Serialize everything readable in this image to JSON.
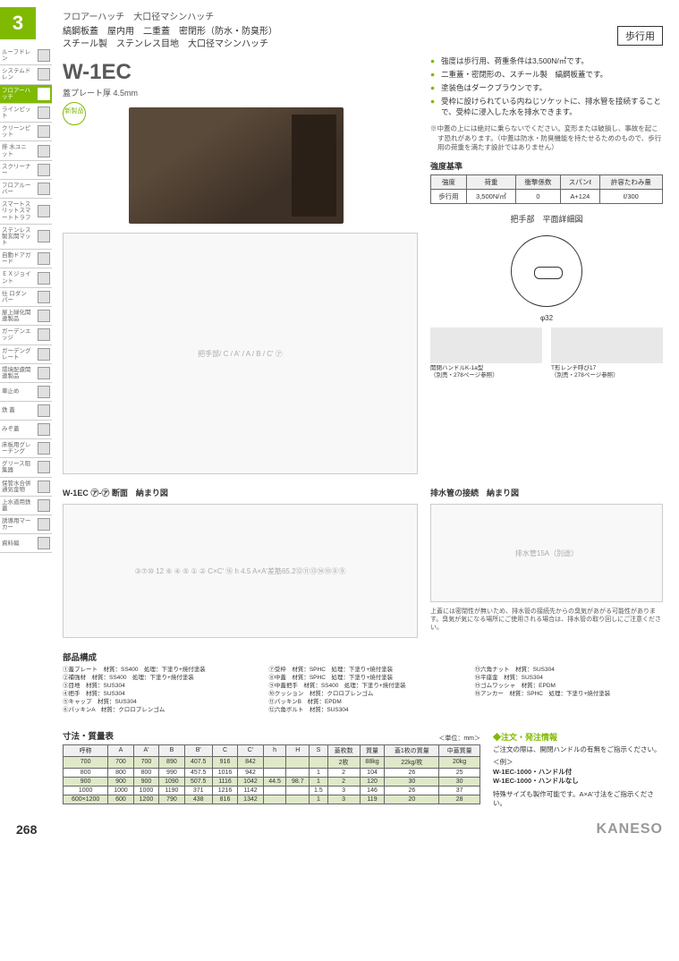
{
  "page_tab": "3",
  "sidebar": [
    {
      "label": "ルーフドレン"
    },
    {
      "label": "システムドレン"
    },
    {
      "label": "フロアーハッチ",
      "active": true
    },
    {
      "label": "ラインピット"
    },
    {
      "label": "クリーンピット"
    },
    {
      "label": "排 水ユニット"
    },
    {
      "label": "スクリーナー"
    },
    {
      "label": "フロアルーバー"
    },
    {
      "label": "スマートスリットスマートトラフ"
    },
    {
      "label": "ステンレス製玄関マット"
    },
    {
      "label": "自動ドアガード"
    },
    {
      "label": "ＥＸジョイント"
    },
    {
      "label": "仕 口ダンパー"
    },
    {
      "label": "屋上緑化関連製品"
    },
    {
      "label": "ガーデンエッジ"
    },
    {
      "label": "ガーデングレート"
    },
    {
      "label": "環境配慮関連製品"
    },
    {
      "label": "車止め"
    },
    {
      "label": "鉄 蓋"
    },
    {
      "label": "みぞ蓋"
    },
    {
      "label": "床板用グレーチング"
    },
    {
      "label": "グリース阻集器"
    },
    {
      "label": "保管水合併通気金物"
    },
    {
      "label": "上水道用鉄 蓋"
    },
    {
      "label": "誘導用マーカー"
    },
    {
      "label": "資料編"
    }
  ],
  "category": "フロアーハッチ　大口径マシンハッチ",
  "subtitle_line1": "縞鋼板蓋　屋内用　二重蓋　密閉形（防水・防臭形）",
  "subtitle_line2": "スチール製　ステンレス目地　大口径マシンハッチ",
  "walk_badge": "歩行用",
  "product_code": "W-1EC",
  "plate_thickness": "蓋プレート厚 4.5mm",
  "new_badge": "新製品",
  "bullets": [
    "強度は歩行用、荷重条件は3,500N/㎡です。",
    "二重蓋・密閉形の、スチール製　縞鋼板蓋です。",
    "塗装色はダークブラウンです。",
    "受枠に設けられている内ねじソケットに、排水管を接続することで、受枠に浸入した水を排水できます。"
  ],
  "caution_note": "※中蓋の上には絶対に乗らないでください。変形または破損し、事故を起こす恐れがあります。（中蓋は防水・防臭機能を持たせるためのもので、歩行用の荷重を満たす設計ではありません）",
  "strength_title": "強度基準",
  "strength_headers": [
    "強度",
    "荷重",
    "衝撃係数",
    "スパンℓ",
    "許容たわみ量"
  ],
  "strength_row": [
    "歩行用",
    "3,500N/㎡",
    "0",
    "A+124",
    "ℓ/300"
  ],
  "handle_title": "把手部　平面詳細図",
  "phi_label": "φ32",
  "tool1_name": "開閉ハンドルK-1a型",
  "tool1_note": "（別売・278ページ参照）",
  "tool2_name": "T形レンチ呼び17",
  "tool2_note": "（別売・278ページ参照）",
  "section_title": "W-1EC ㋐-㋐ 断面　納まり図",
  "drain_title": "排水管の接続　納まり図",
  "drain_pipe_label": "排水管15A（別途）",
  "drain_note": "上蓋には密閉性が無いため、排水管の接続先からの臭気があがる可能性があります。臭気が気になる場所にご使用される場合は、排水管の取り回しにご注意ください。",
  "parts_title": "部品構成",
  "parts": [
    [
      "①蓋プレート",
      "材質：SS400",
      "処理：下塗り+焼付塗装"
    ],
    [
      "②補強材",
      "材質：SS400",
      "処理：下塗り+焼付塗装"
    ],
    [
      "③目地",
      "材質：SUS304",
      ""
    ],
    [
      "④把手",
      "材質：SUS304",
      ""
    ],
    [
      "⑤キャップ",
      "材質：SUS304",
      ""
    ],
    [
      "⑥パッキンA",
      "材質：クロロプレンゴム",
      ""
    ],
    [
      "⑦受枠",
      "材質：SPHC",
      "処理：下塗り+焼付塗装"
    ],
    [
      "⑧中蓋",
      "材質：SPHC",
      "処理：下塗り+焼付塗装"
    ],
    [
      "⑨中蓋把手",
      "材質：SS400",
      "処理：下塗り+焼付塗装"
    ],
    [
      "⑩クッション",
      "材質：クロロプレンゴム",
      ""
    ],
    [
      "⑪パッキンB",
      "材質：EPDM",
      ""
    ],
    [
      "⑫六角ボルト",
      "材質：SUS304",
      ""
    ],
    [
      "⑬六角ナット",
      "材質：SUS304",
      ""
    ],
    [
      "⑭平座金",
      "材質：SUS304",
      ""
    ],
    [
      "⑮ゴムワッシャ",
      "材質：EPDM",
      ""
    ],
    [
      "⑯アンカー",
      "材質：SPHC",
      "処理：下塗り+焼付塗装"
    ]
  ],
  "dim_title": "寸法・質量表",
  "dim_unit": "＜単位：mm＞",
  "dim_headers": [
    "呼称",
    "A",
    "A'",
    "B",
    "B'",
    "C",
    "C'",
    "h",
    "H",
    "S",
    "蓋枚数",
    "質量",
    "蓋1枚の質量",
    "中蓋質量"
  ],
  "dim_rows": [
    {
      "cells": [
        "700",
        "700",
        "700",
        "890",
        "407.5",
        "916",
        "842",
        "",
        "",
        "",
        "2枚",
        "88kg",
        "22kg/枚",
        "20kg"
      ],
      "hl": true
    },
    {
      "cells": [
        "800",
        "800",
        "800",
        "990",
        "457.5",
        "1016",
        "942",
        "",
        "",
        "1",
        "2",
        "104",
        "26",
        "25"
      ],
      "hl": false
    },
    {
      "cells": [
        "900",
        "900",
        "900",
        "1090",
        "507.5",
        "1116",
        "1042",
        "44.5",
        "98.7",
        "1",
        "2",
        "120",
        "30",
        "30"
      ],
      "hl": true
    },
    {
      "cells": [
        "1000",
        "1000",
        "1000",
        "1190",
        "371",
        "1216",
        "1142",
        "",
        "",
        "1.5",
        "3",
        "146",
        "26",
        "37"
      ],
      "hl": false
    },
    {
      "cells": [
        "600×1200",
        "600",
        "1200",
        "790",
        "438",
        "816",
        "1342",
        "",
        "",
        "1",
        "3",
        "119",
        "20",
        "28"
      ],
      "hl": true
    }
  ],
  "dim_h_value": "44.5",
  "dim_H_value": "98.7",
  "order_title": "注文・発注情報",
  "order_text": "ご注文の際は、開閉ハンドルの有無をご指示ください。",
  "order_example_label": "＜例＞",
  "order_ex1": "W-1EC-1000・ハンドル付",
  "order_ex2": "W-1EC-1000・ハンドルなし",
  "order_special": "特殊サイズも製作可能です。A×A'寸法をご指示ください。",
  "page_number": "268",
  "brand": "KANESO",
  "plan_label": "把手部",
  "section_labels": {
    "rebar": "差筋",
    "dim652": "65.2"
  },
  "colors": {
    "accent": "#7fba00",
    "product_brown": "#3d3026"
  }
}
